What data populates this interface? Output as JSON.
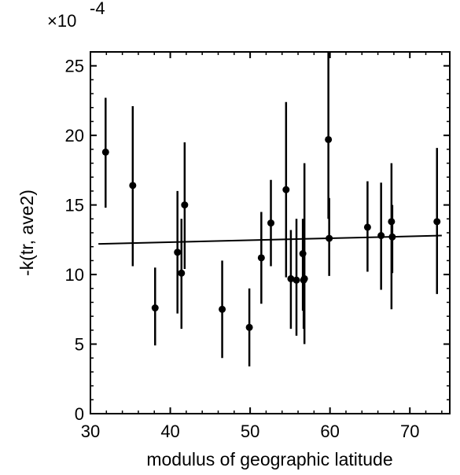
{
  "chart_data": {
    "type": "scatter",
    "title": "",
    "xlabel": "modulus of geographic latitude",
    "ylabel": "-k(tr, ave2)",
    "y_multiplier": {
      "base": "×10",
      "exponent": "-4"
    },
    "xlim": [
      30,
      75
    ],
    "ylim": [
      0,
      26
    ],
    "x_ticks": [
      30,
      40,
      50,
      60,
      70
    ],
    "y_ticks": [
      0,
      5,
      10,
      15,
      20,
      25
    ],
    "x_tick_labels": [
      "30",
      "40",
      "50",
      "60",
      "70"
    ],
    "y_tick_labels": [
      "0",
      "5",
      "10",
      "15",
      "20",
      "25"
    ],
    "grid": false,
    "legend": "none",
    "points": [
      {
        "x": 31.9,
        "y": 18.8,
        "ylow": 14.8,
        "yhigh": 22.7
      },
      {
        "x": 35.3,
        "y": 16.4,
        "ylow": 10.6,
        "yhigh": 22.1
      },
      {
        "x": 38.1,
        "y": 7.6,
        "ylow": 4.9,
        "yhigh": 10.5
      },
      {
        "x": 40.9,
        "y": 11.6,
        "ylow": 7.2,
        "yhigh": 16.0
      },
      {
        "x": 41.4,
        "y": 10.1,
        "ylow": 6.1,
        "yhigh": 14.0
      },
      {
        "x": 41.8,
        "y": 15.0,
        "ylow": 10.4,
        "yhigh": 19.5
      },
      {
        "x": 46.5,
        "y": 7.5,
        "ylow": 4.0,
        "yhigh": 11.0
      },
      {
        "x": 49.9,
        "y": 6.2,
        "ylow": 3.4,
        "yhigh": 9.0
      },
      {
        "x": 51.4,
        "y": 11.2,
        "ylow": 7.9,
        "yhigh": 14.5
      },
      {
        "x": 52.6,
        "y": 13.7,
        "ylow": 10.6,
        "yhigh": 16.8
      },
      {
        "x": 54.5,
        "y": 16.1,
        "ylow": 9.8,
        "yhigh": 22.4
      },
      {
        "x": 55.1,
        "y": 9.7,
        "ylow": 6.1,
        "yhigh": 13.2
      },
      {
        "x": 55.8,
        "y": 9.6,
        "ylow": 5.6,
        "yhigh": 14.0
      },
      {
        "x": 56.6,
        "y": 11.5,
        "ylow": 7.4,
        "yhigh": 14.0
      },
      {
        "x": 56.7,
        "y": 9.6,
        "ylow": 6.1,
        "yhigh": 13.8
      },
      {
        "x": 56.8,
        "y": 9.7,
        "ylow": 5.0,
        "yhigh": 18.0
      },
      {
        "x": 59.8,
        "y": 19.7,
        "ylow": 14.0,
        "yhigh": 26.0
      },
      {
        "x": 59.9,
        "y": 12.6,
        "ylow": 9.9,
        "yhigh": 15.5
      },
      {
        "x": 64.7,
        "y": 13.4,
        "ylow": 10.2,
        "yhigh": 16.7
      },
      {
        "x": 66.4,
        "y": 12.8,
        "ylow": 8.9,
        "yhigh": 16.6
      },
      {
        "x": 67.7,
        "y": 13.8,
        "ylow": 7.5,
        "yhigh": 18.0
      },
      {
        "x": 67.8,
        "y": 12.7,
        "ylow": 10.1,
        "yhigh": 15.0
      },
      {
        "x": 73.4,
        "y": 13.8,
        "ylow": 8.6,
        "yhigh": 19.1
      }
    ],
    "fit_line": {
      "x": [
        31.0,
        74.0
      ],
      "y": [
        12.2,
        12.8
      ]
    }
  }
}
